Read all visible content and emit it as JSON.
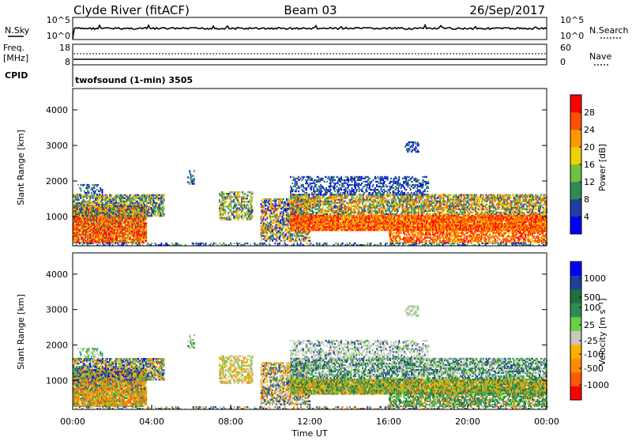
{
  "header": {
    "station": "Clyde River (fitACF)",
    "beam": "Beam 03",
    "date": "26/Sep/2017"
  },
  "panels": {
    "nsky_label": "N.Sky",
    "nsearch_label": "N.Search",
    "nsky_ticks": [
      "10^5",
      "10^0"
    ],
    "nsearch_ticks": [
      "10^5",
      "10^0"
    ],
    "freq_label": "Freq.",
    "freq_unit": "[MHz]",
    "freq_ticks": [
      "18",
      "8"
    ],
    "nave_label": "Nave",
    "nave_ticks": [
      "60",
      "0"
    ],
    "cpid_label": "CPID",
    "cpid_value": "twofsound (1-min) 3505"
  },
  "colors": {
    "power": [
      "#0000ff",
      "#2040a0",
      "#2e8b57",
      "#70c040",
      "#f0d000",
      "#ff9900",
      "#ff5000",
      "#ff0000"
    ],
    "velocity": [
      "#ff0000",
      "#ff5a00",
      "#ff8c00",
      "#ffb000",
      "#c8c8bc",
      "#6ad040",
      "#2e8b57",
      "#1e7040",
      "#2040a0",
      "#0000ff"
    ]
  },
  "chart_data": [
    {
      "type": "heatmap",
      "name": "power",
      "xlabel": "",
      "ylabel": "Slant Range [km]",
      "xlim": [
        "00:00",
        "24:00"
      ],
      "ylim": [
        180,
        4600
      ],
      "yticks": [
        "1000",
        "2000",
        "3000",
        "4000"
      ],
      "colorbar_label": "Power [dB]",
      "colorbar_ticks": [
        "4",
        "8",
        "12",
        "16",
        "20",
        "24",
        "28"
      ],
      "colorbar_range": [
        0,
        32
      ],
      "observations": [
        {
          "time": "00:00-03:45",
          "range_km": [
            300,
            1500
          ],
          "peak_db": 28,
          "note": "strong scatter near 1000 km and near 500 km"
        },
        {
          "time": "02:30-04:30",
          "range_km": [
            1000,
            1600
          ],
          "peak_db": 20
        },
        {
          "time": "05:50-06:10",
          "range_km": [
            1900,
            2300
          ],
          "peak_db": 10
        },
        {
          "time": "07:30-09:00",
          "range_km": [
            900,
            1700
          ],
          "peak_db": 10
        },
        {
          "time": "09:30-24:00",
          "range_km": [
            600,
            1600
          ],
          "peak_db": 28,
          "note": "red band near 700-1000 km"
        },
        {
          "time": "12:30-15:00",
          "range_km": [
            1600,
            2200
          ],
          "peak_db": 8
        },
        {
          "time": "16:45-17:30",
          "range_km": [
            2800,
            3100
          ],
          "peak_db": 8
        }
      ]
    },
    {
      "type": "heatmap",
      "name": "velocity",
      "xlabel": "Time UT",
      "ylabel": "Slant Range [km]",
      "xlim": [
        "00:00",
        "24:00"
      ],
      "ylim": [
        180,
        4600
      ],
      "xticks": [
        "00:00",
        "04:00",
        "08:00",
        "12:00",
        "16:00",
        "20:00",
        "00:00"
      ],
      "yticks": [
        "1000",
        "2000",
        "3000",
        "4000"
      ],
      "colorbar_label": "Velocity [m s⁻¹]",
      "colorbar_ticks": [
        "1000",
        "500",
        "100",
        "25",
        "-25",
        "-100",
        "-500",
        "-1000"
      ],
      "observations": [
        {
          "time": "00:00-04:30",
          "range_km": [
            300,
            1500
          ],
          "velocity": "-100 to -500 m/s (orange)"
        },
        {
          "time": "11:00-18:00",
          "range_km": [
            1500,
            2100
          ],
          "velocity": "-25 to 25 m/s (grey)"
        },
        {
          "time": "16:00-24:00",
          "range_km": [
            300,
            1200
          ],
          "velocity": "100 to 500 m/s (green)"
        }
      ]
    }
  ]
}
